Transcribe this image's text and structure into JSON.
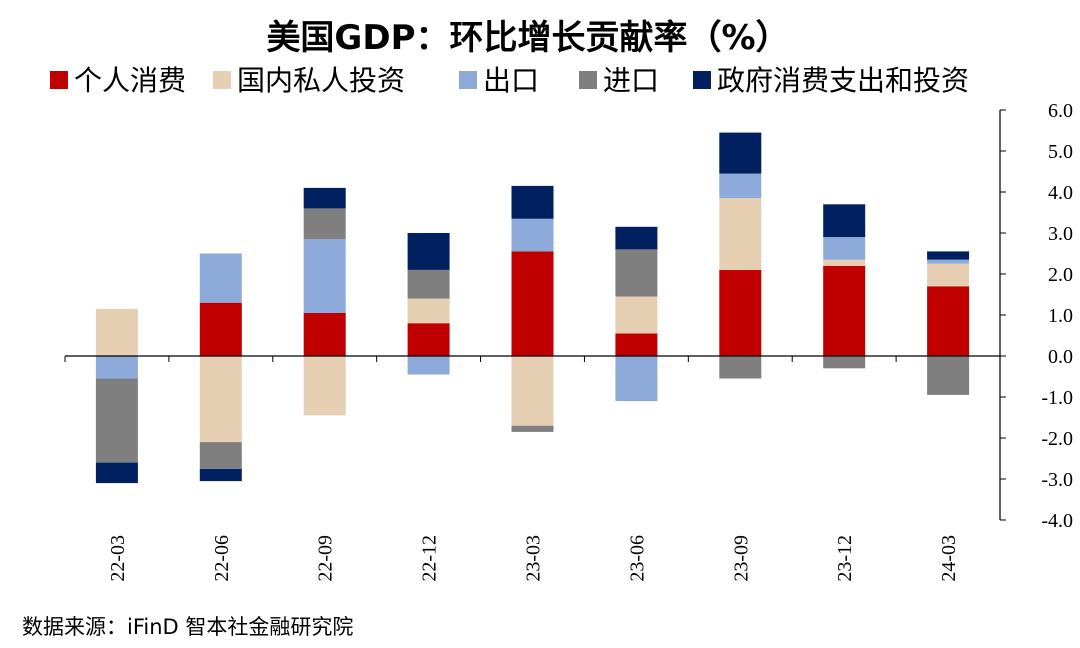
{
  "chart_data": {
    "type": "bar",
    "stacked": true,
    "title": "美国GDP：环比增长贡献率（%）",
    "categories": [
      "22-03",
      "22-06",
      "22-09",
      "22-12",
      "23-03",
      "23-06",
      "23-09",
      "23-12",
      "24-03"
    ],
    "series": [
      {
        "name": "个人消费",
        "color": "#c00000",
        "values": [
          0.0,
          1.3,
          1.05,
          0.8,
          2.55,
          0.55,
          2.1,
          2.2,
          1.7
        ]
      },
      {
        "name": "国内私人投资",
        "color": "#e6cfb2",
        "values": [
          1.15,
          -2.1,
          -1.45,
          0.6,
          -1.7,
          0.9,
          1.75,
          0.15,
          0.55
        ]
      },
      {
        "name": "出口",
        "color": "#8eaadb",
        "values": [
          -0.55,
          1.2,
          1.8,
          -0.45,
          0.8,
          -1.1,
          0.6,
          0.55,
          0.1
        ]
      },
      {
        "name": "进口",
        "color": "#7f7f7f",
        "values": [
          -2.05,
          -0.65,
          0.75,
          0.7,
          -0.15,
          1.15,
          -0.55,
          -0.3,
          -0.95
        ]
      },
      {
        "name": "政府消费支出和投资",
        "color": "#002060",
        "values": [
          -0.5,
          -0.3,
          0.5,
          0.9,
          0.8,
          0.55,
          1.0,
          0.8,
          0.2
        ]
      }
    ],
    "ylim": [
      -4.0,
      6.0
    ],
    "yticks": [
      "6.0",
      "5.0",
      "4.0",
      "3.0",
      "2.0",
      "1.0",
      "0.0",
      "-1.0",
      "-2.0",
      "-3.0",
      "-4.0"
    ],
    "ytick_values": [
      6,
      5,
      4,
      3,
      2,
      1,
      0,
      -1,
      -2,
      -3,
      -4
    ],
    "legend_position": "top",
    "y_axis_position": "right",
    "grid": false
  },
  "source_note": "数据来源：iFinD 智本社金融研究院"
}
